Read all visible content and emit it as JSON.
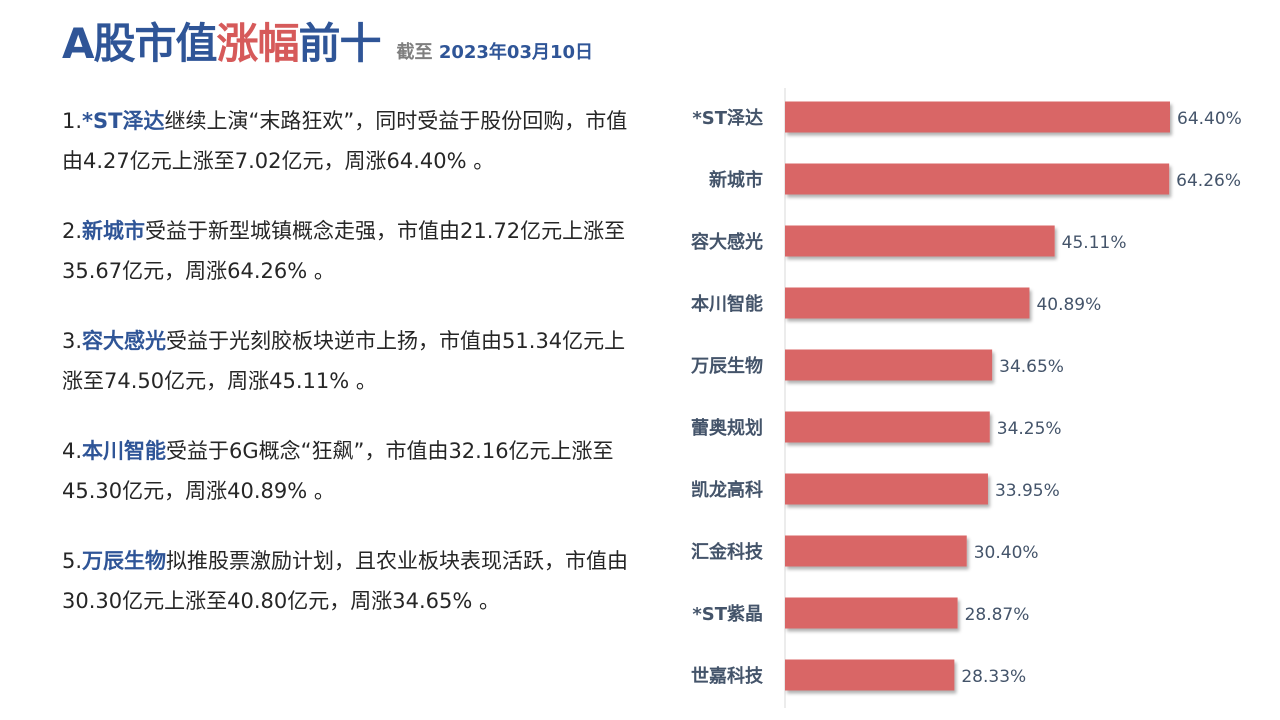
{
  "header": {
    "title_prefix": "A股市值",
    "title_highlight": "涨幅",
    "title_suffix": "前十",
    "date_label": "截至",
    "date_value": "2023年03月10日"
  },
  "bullets": [
    {
      "num": "1.",
      "name": "*ST泽达",
      "text": "继续上演“末路狂欢”，同时受益于股份回购，市值由4.27亿元上涨至7.02亿元，周涨64.40% 。"
    },
    {
      "num": "2.",
      "name": "新城市",
      "text": "受益于新型城镇概念走强，市值由21.72亿元上涨至35.67亿元，周涨64.26% 。"
    },
    {
      "num": "3.",
      "name": "容大感光",
      "text": "受益于光刻胶板块逆市上扬，市值由51.34亿元上涨至74.50亿元，周涨45.11% 。"
    },
    {
      "num": "4.",
      "name": "本川智能",
      "text": "受益于6G概念“狂飙”，市值由32.16亿元上涨至45.30亿元，周涨40.89% 。"
    },
    {
      "num": "5.",
      "name": "万辰生物",
      "text": "拟推股票激励计划，且农业板块表现活跃，市值由30.30亿元上涨至40.80亿元，周涨34.65% 。"
    }
  ],
  "chart_data": {
    "type": "bar",
    "orientation": "horizontal",
    "title": "",
    "xlabel": "",
    "ylabel": "",
    "categories": [
      "*ST泽达",
      "新城市",
      "容大感光",
      "本川智能",
      "万辰生物",
      "蕾奥规划",
      "凯龙高科",
      "汇金科技",
      "*ST紫晶",
      "世嘉科技"
    ],
    "values": [
      64.4,
      64.26,
      45.11,
      40.89,
      34.65,
      34.25,
      33.95,
      30.4,
      28.87,
      28.33
    ],
    "value_labels": [
      "64.40%",
      "64.26%",
      "45.11%",
      "40.89%",
      "34.65%",
      "34.25%",
      "33.95%",
      "30.40%",
      "28.87%",
      "28.33%"
    ],
    "xlim": [
      0,
      64.4
    ],
    "grid": false,
    "bar_color": "#d96666",
    "label_color": "#44546a"
  }
}
